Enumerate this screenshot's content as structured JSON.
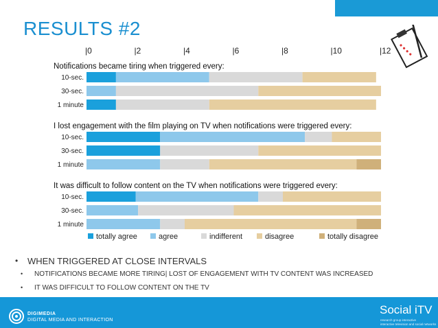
{
  "slide": {
    "title": "RESULTS #2",
    "bullets": [
      {
        "text": "WHEN TRIGGERED AT CLOSE INTERVALS",
        "level": 1
      },
      {
        "text": "NOTIFICATIONS BECAME MORE TIRING| LOST OF ENGAGEMENT WITH TV CONTENT WAS INCREASED",
        "level": 2
      },
      {
        "text": "IT WAS DIFFICULT TO FOLLOW CONTENT ON THE TV",
        "level": 2
      }
    ],
    "bullet_glyph": "•",
    "footer": {
      "org_line1": "DIGIMEDIA",
      "org_line2": "DIGITAL MEDIA AND INTERACTION",
      "brand": "Social iTV",
      "tagline1": "research group interactive",
      "tagline2": "interactive television and social networks"
    },
    "colors": {
      "footer_bg": "#1597d8",
      "title": "#1a8fd0",
      "top_bar": "#1a9ad6"
    },
    "icons": [
      "clipboard-checklist-icon",
      "digimedia-logo-icon"
    ]
  },
  "chart_data": {
    "type": "bar",
    "orientation": "horizontal",
    "stacked": true,
    "xlim": [
      0,
      12
    ],
    "x_ticks": [
      "|0",
      "|2",
      "|4",
      "|6",
      "|8",
      "|10",
      "|12"
    ],
    "legend": {
      "position": "bottom",
      "entries": [
        {
          "name": "totally agree",
          "color": "#1aa0dc"
        },
        {
          "name": "agree",
          "color": "#8ec8eb"
        },
        {
          "name": "indifferent",
          "color": "#d9d9d9"
        },
        {
          "name": "disagree",
          "color": "#e6ceA0"
        },
        {
          "name": "totally disagree",
          "color": "#cfb07a"
        }
      ]
    },
    "groups": [
      {
        "title": "Notifications became tiring when triggered every:",
        "categories": [
          "10-sec.",
          "30-sec.",
          "1 minute"
        ],
        "series": [
          {
            "name": "totally agree",
            "values": [
              1.2,
              0,
              1.2
            ]
          },
          {
            "name": "agree",
            "values": [
              3.8,
              1.2,
              0
            ]
          },
          {
            "name": "indifferent",
            "values": [
              3.8,
              5.8,
              3.8
            ]
          },
          {
            "name": "disagree",
            "values": [
              3.0,
              5.0,
              6.8
            ]
          },
          {
            "name": "totally disagree",
            "values": [
              0,
              0,
              0
            ]
          }
        ]
      },
      {
        "title": "I lost engagement with the film playing on TV when notifications were triggered every:",
        "categories": [
          "10-sec.",
          "30-sec.",
          "1 minute"
        ],
        "series": [
          {
            "name": "totally agree",
            "values": [
              3.0,
              3.0,
              0
            ]
          },
          {
            "name": "agree",
            "values": [
              5.9,
              0,
              3.0
            ]
          },
          {
            "name": "indifferent",
            "values": [
              1.1,
              4.0,
              2.0
            ]
          },
          {
            "name": "disagree",
            "values": [
              2.0,
              5.0,
              6.0
            ]
          },
          {
            "name": "totally disagree",
            "values": [
              0,
              0,
              1.0
            ]
          }
        ]
      },
      {
        "title": "It was difficult to follow content on the TV when notifications were triggered every:",
        "categories": [
          "10-sec.",
          "30-sec.",
          "1 minute"
        ],
        "series": [
          {
            "name": "totally agree",
            "values": [
              2.0,
              0,
              0
            ]
          },
          {
            "name": "agree",
            "values": [
              5.0,
              2.1,
              3.0
            ]
          },
          {
            "name": "indifferent",
            "values": [
              1.0,
              3.9,
              1.0
            ]
          },
          {
            "name": "disagree",
            "values": [
              4.0,
              6.0,
              7.0
            ]
          },
          {
            "name": "totally disagree",
            "values": [
              0,
              0,
              1.0
            ]
          }
        ]
      }
    ]
  }
}
